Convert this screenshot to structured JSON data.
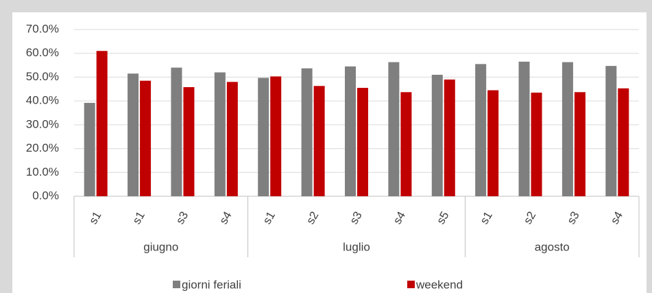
{
  "chart_data": {
    "type": "bar",
    "groups": [
      {
        "name": "giugno",
        "categories": [
          "s1",
          "s1",
          "s3",
          "s4"
        ]
      },
      {
        "name": "luglio",
        "categories": [
          "s1",
          "s2",
          "s3",
          "s4",
          "s5"
        ]
      },
      {
        "name": "agosto",
        "categories": [
          "s1",
          "s2",
          "s3",
          "s4"
        ]
      }
    ],
    "series": [
      {
        "name": "giorni feriali",
        "color": "#7f7f7f",
        "values": [
          39.2,
          51.5,
          54,
          52,
          49.7,
          53.7,
          54.5,
          56.3,
          51,
          55.5,
          56.5,
          56.3,
          54.7
        ]
      },
      {
        "name": "weekend",
        "color": "#c00000",
        "values": [
          61,
          48.5,
          45.8,
          48,
          50.3,
          46.3,
          45.5,
          43.7,
          49,
          44.5,
          43.5,
          43.7,
          45.3
        ]
      }
    ],
    "ylim": [
      0,
      70
    ],
    "yticks": [
      {
        "value": 0,
        "label": "0.0%"
      },
      {
        "value": 10,
        "label": "10.0%"
      },
      {
        "value": 20,
        "label": "20.0%"
      },
      {
        "value": 30,
        "label": "30.0%"
      },
      {
        "value": 40,
        "label": "40.0%"
      },
      {
        "value": 50,
        "label": "50.0%"
      },
      {
        "value": 60,
        "label": "60.0%"
      },
      {
        "value": 70,
        "label": "70.0%"
      }
    ],
    "grid": true,
    "legend": "bottom"
  }
}
